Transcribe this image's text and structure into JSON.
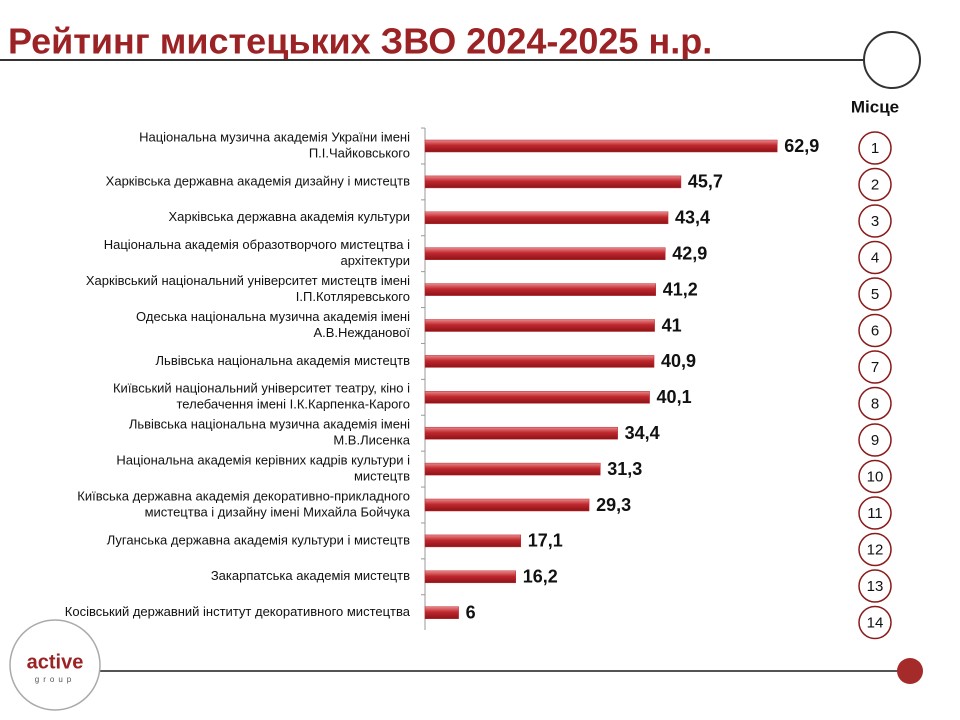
{
  "chart_data": {
    "type": "bar",
    "orientation": "horizontal",
    "title": "Рейтинг мистецьких ЗВО 2024-2025 н.р.",
    "categories": [
      [
        "Національна музична академія України імені",
        "П.І.Чайковського"
      ],
      [
        "Харківська державна академія дизайну і мистецтв"
      ],
      [
        "Харківська державна академія культури"
      ],
      [
        "Національна академія образотворчого мистецтва і",
        "архітектури"
      ],
      [
        "Харківський національний університет мистецтв імені",
        "І.П.Котляревського"
      ],
      [
        "Одеська національна музична академія імені",
        "А.В.Нежданової"
      ],
      [
        "Львівська національна академія мистецтв"
      ],
      [
        "Київський національний університет театру, кіно і",
        "телебачення імені І.К.Карпенка-Карого"
      ],
      [
        "Львівська національна музична академія імені",
        "М.В.Лисенка"
      ],
      [
        "Національна академія керівних кадрів культури і",
        "мистецтв"
      ],
      [
        "Київська державна академія декоративно-прикладного",
        "мистецтва і дизайну імені Михайла  Бойчука"
      ],
      [
        "Луганська державна академія культури і мистецтв"
      ],
      [
        "Закарпатська академія мистецтв"
      ],
      [
        "Косівський державний інститут декоративного мистецтва"
      ]
    ],
    "values": [
      62.9,
      45.7,
      43.4,
      42.9,
      41.2,
      41,
      40.9,
      40.1,
      34.4,
      31.3,
      29.3,
      17.1,
      16.2,
      6
    ],
    "value_labels": [
      "62,9",
      "45,7",
      "43,4",
      "42,9",
      "41,2",
      "41",
      "40,9",
      "40,1",
      "34,4",
      "31,3",
      "29,3",
      "17,1",
      "16,2",
      "6"
    ],
    "color": "#c0272d",
    "rank_label": "Місце",
    "ranks": [
      1,
      2,
      3,
      4,
      5,
      6,
      7,
      8,
      9,
      10,
      11,
      12,
      13,
      14
    ]
  },
  "logo": {
    "name": "active",
    "sub": "group"
  }
}
